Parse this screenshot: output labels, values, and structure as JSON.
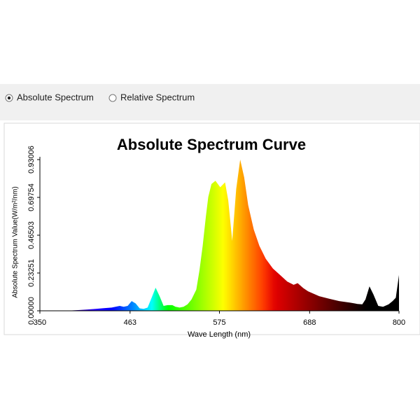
{
  "ui": {
    "options": [
      {
        "label": "Absolute Spectrum",
        "selected": true
      },
      {
        "label": "Relative Spectrum",
        "selected": false
      }
    ]
  },
  "chart_data": {
    "type": "area",
    "title": "Absolute Spectrum Curve",
    "x_label": "Wave Length (nm)",
    "y_label": "Absolute Spectrum Value(W/m²/nm)",
    "x": [
      380,
      390,
      400,
      410,
      420,
      430,
      440,
      450,
      455,
      460,
      465,
      470,
      475,
      480,
      485,
      490,
      495,
      500,
      505,
      510,
      516,
      520,
      525,
      530,
      535,
      540,
      546,
      550,
      554,
      558,
      561,
      565,
      570,
      576,
      582,
      586,
      591,
      596,
      601,
      606,
      611,
      618,
      625,
      633,
      642,
      651,
      660,
      668,
      673,
      680,
      686,
      700,
      712,
      725,
      739,
      748,
      754,
      758,
      763,
      768,
      774,
      780,
      787,
      792,
      796,
      800
    ],
    "values": [
      0,
      0.002,
      0.005,
      0.008,
      0.012,
      0.016,
      0.02,
      0.03,
      0.025,
      0.03,
      0.06,
      0.045,
      0.015,
      0.012,
      0.02,
      0.08,
      0.142,
      0.09,
      0.03,
      0.035,
      0.035,
      0.025,
      0.02,
      0.025,
      0.04,
      0.07,
      0.13,
      0.25,
      0.4,
      0.58,
      0.7,
      0.78,
      0.8,
      0.76,
      0.79,
      0.68,
      0.43,
      0.75,
      0.93,
      0.82,
      0.65,
      0.5,
      0.4,
      0.32,
      0.26,
      0.22,
      0.18,
      0.16,
      0.17,
      0.14,
      0.12,
      0.09,
      0.075,
      0.06,
      0.05,
      0.042,
      0.04,
      0.07,
      0.15,
      0.1,
      0.03,
      0.025,
      0.04,
      0.06,
      0.08,
      0.22
    ],
    "xlim": [
      350,
      800
    ],
    "xticks": [
      350,
      463,
      575,
      688,
      800
    ],
    "ylim": [
      0,
      0.93006
    ],
    "yticks": [
      {
        "value": 0,
        "label": "0.00000"
      },
      0.23251,
      0.46503,
      0.69754,
      0.93006
    ],
    "grid": false
  }
}
